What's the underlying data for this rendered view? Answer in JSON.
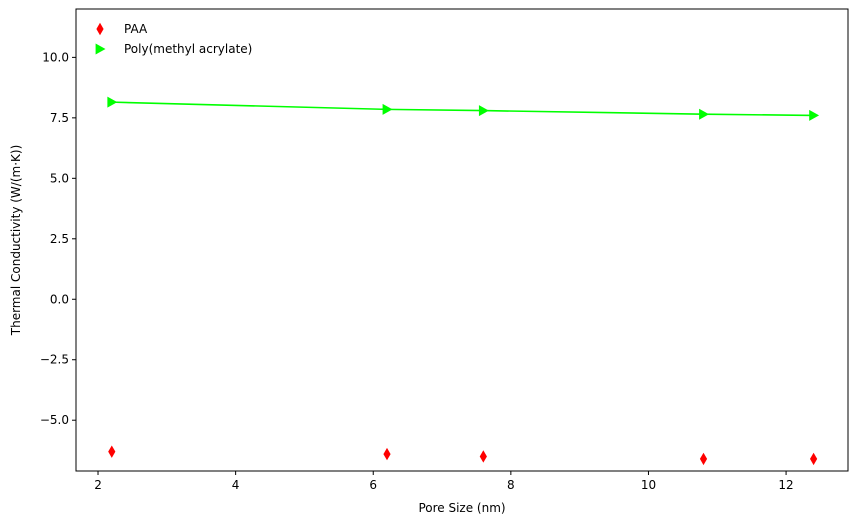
{
  "chart_data": {
    "type": "scatter",
    "title": "",
    "xlabel": "Pore Size (nm)",
    "ylabel": "Thermal Conductivity (W/(m·K))",
    "xlim": [
      1.68,
      12.9
    ],
    "ylim": [
      -7.1,
      12.0
    ],
    "xticks": [
      2,
      4,
      6,
      8,
      10,
      12
    ],
    "yticks": [
      -5.0,
      -2.5,
      0.0,
      2.5,
      5.0,
      7.5,
      10.0
    ],
    "xtick_labels": [
      "2",
      "4",
      "6",
      "8",
      "10",
      "12"
    ],
    "ytick_labels": [
      "−5.0",
      "−2.5",
      "0.0",
      "2.5",
      "5.0",
      "7.5",
      "10.0"
    ],
    "grid": false,
    "legend_position": "top-left",
    "series": [
      {
        "name": "PAA",
        "marker": "thin-diamond",
        "color": "#ff0000",
        "line": false,
        "x": [
          2.2,
          6.2,
          7.6,
          10.8,
          12.4
        ],
        "y": [
          -6.3,
          -6.4,
          -6.5,
          -6.6,
          -6.6
        ]
      },
      {
        "name": "Poly(methyl acrylate)",
        "marker": "triangle-right",
        "color": "#00ff00",
        "line": true,
        "x": [
          2.2,
          6.2,
          7.6,
          10.8,
          12.4
        ],
        "y": [
          8.15,
          7.85,
          7.8,
          7.65,
          7.6
        ]
      }
    ]
  }
}
